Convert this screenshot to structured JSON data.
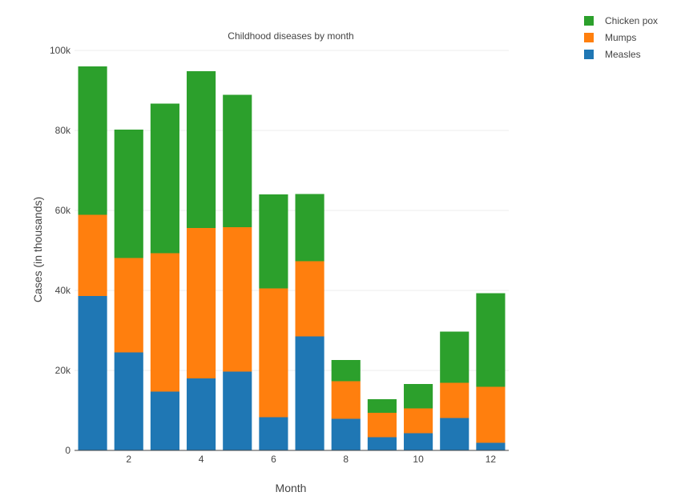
{
  "chart_data": {
    "type": "bar",
    "stacked": true,
    "title": "Childhood diseases by month",
    "xlabel": "Month",
    "ylabel": "Cases (in thousands)",
    "categories": [
      1,
      2,
      3,
      4,
      5,
      6,
      7,
      8,
      9,
      10,
      11,
      12
    ],
    "x_ticks": [
      "2",
      "4",
      "6",
      "8",
      "10",
      "12"
    ],
    "y_ticks": [
      "0",
      "20k",
      "40k",
      "60k",
      "80k",
      "100k"
    ],
    "ylim": [
      0,
      100000
    ],
    "grid": true,
    "legend_position": "top-right",
    "series": [
      {
        "name": "Measles",
        "color": "#1f77b4",
        "values": [
          38600,
          24500,
          14700,
          18000,
          19700,
          8300,
          28500,
          7900,
          3300,
          4300,
          8100,
          1900
        ]
      },
      {
        "name": "Mumps",
        "color": "#ff7f0e",
        "values": [
          20300,
          23600,
          34600,
          37600,
          36100,
          32200,
          18800,
          9400,
          6100,
          6200,
          8800,
          14000
        ]
      },
      {
        "name": "Chicken pox",
        "color": "#2ca02c",
        "values": [
          37100,
          32100,
          37400,
          39200,
          33100,
          23500,
          16800,
          5300,
          3400,
          6100,
          12800,
          23400
        ]
      }
    ]
  }
}
